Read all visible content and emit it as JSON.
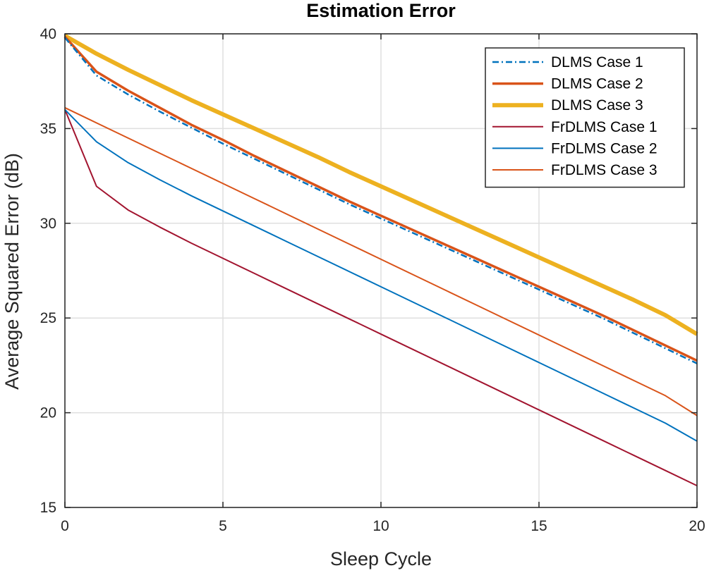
{
  "chart_data": {
    "type": "line",
    "title": "Estimation Error",
    "xlabel": "Sleep Cycle",
    "ylabel": "Average Squared Error (dB)",
    "xlim": [
      0,
      20
    ],
    "ylim": [
      15,
      40
    ],
    "xticks": [
      0,
      5,
      10,
      15,
      20
    ],
    "yticks": [
      15,
      20,
      25,
      30,
      35,
      40
    ],
    "grid": true,
    "legend_position": "top-right",
    "x": [
      0,
      1,
      2,
      3,
      4,
      5,
      6,
      7,
      8,
      9,
      10,
      11,
      12,
      13,
      14,
      15,
      16,
      17,
      18,
      19,
      20
    ],
    "series": [
      {
        "name": "DLMS Case 1",
        "color": "#0072bd",
        "style": "dashdot",
        "width": 2.5,
        "values": [
          39.8,
          37.8,
          36.8,
          35.9,
          35.05,
          34.2,
          33.4,
          32.6,
          31.8,
          31.0,
          30.25,
          29.5,
          28.75,
          28.0,
          27.25,
          26.5,
          25.75,
          25.0,
          24.2,
          23.4,
          22.6
        ]
      },
      {
        "name": "DLMS Case 2",
        "color": "#d95319",
        "style": "solid",
        "width": 3.5,
        "values": [
          39.85,
          38.0,
          37.0,
          36.1,
          35.2,
          34.4,
          33.55,
          32.75,
          31.95,
          31.15,
          30.4,
          29.65,
          28.9,
          28.15,
          27.4,
          26.65,
          25.9,
          25.15,
          24.35,
          23.55,
          22.75
        ]
      },
      {
        "name": "DLMS Case 3",
        "color": "#edb120",
        "style": "solid",
        "width": 6,
        "values": [
          39.9,
          38.95,
          38.1,
          37.3,
          36.5,
          35.75,
          35.0,
          34.25,
          33.5,
          32.7,
          31.95,
          31.2,
          30.45,
          29.7,
          28.95,
          28.2,
          27.45,
          26.7,
          25.95,
          25.15,
          24.15
        ]
      },
      {
        "name": "FrDLMS Case 1",
        "color": "#a2142f",
        "style": "solid",
        "width": 2,
        "values": [
          36.0,
          31.95,
          30.7,
          29.8,
          28.95,
          28.15,
          27.35,
          26.55,
          25.75,
          24.95,
          24.15,
          23.35,
          22.55,
          21.75,
          20.95,
          20.15,
          19.35,
          18.55,
          17.75,
          16.95,
          16.15
        ]
      },
      {
        "name": "FrDLMS Case 2",
        "color": "#0072bd",
        "style": "solid",
        "width": 2,
        "values": [
          36.0,
          34.3,
          33.2,
          32.3,
          31.45,
          30.65,
          29.85,
          29.05,
          28.25,
          27.45,
          26.65,
          25.85,
          25.05,
          24.25,
          23.45,
          22.65,
          21.85,
          21.05,
          20.25,
          19.45,
          18.5
        ]
      },
      {
        "name": "FrDLMS Case 3",
        "color": "#d95319",
        "style": "solid",
        "width": 2,
        "values": [
          36.1,
          35.3,
          34.5,
          33.7,
          32.9,
          32.1,
          31.3,
          30.5,
          29.7,
          28.9,
          28.1,
          27.3,
          26.5,
          25.7,
          24.9,
          24.1,
          23.3,
          22.5,
          21.7,
          20.9,
          19.85
        ]
      }
    ]
  }
}
